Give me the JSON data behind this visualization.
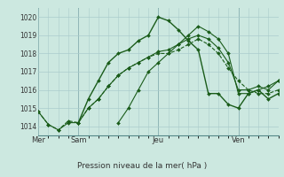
{
  "background_color": "#cce8e0",
  "grid_color": "#aacccc",
  "line_color": "#1a5c1a",
  "ylabel": "Pression niveau de la mer( hPa )",
  "ylim": [
    1013.5,
    1020.5
  ],
  "yticks": [
    1014,
    1015,
    1016,
    1017,
    1018,
    1019,
    1020
  ],
  "day_labels": [
    "Mer",
    "Sam",
    "Jeu",
    "Ven"
  ],
  "day_positions": [
    0,
    12,
    36,
    60
  ],
  "xlim": [
    0,
    72
  ],
  "series": [
    {
      "x": [
        0,
        3,
        6,
        9,
        12,
        15,
        18,
        21,
        24,
        27,
        30,
        33,
        36,
        39,
        42,
        45,
        48,
        51,
        54,
        57,
        60,
        63,
        66,
        69,
        72
      ],
      "y": [
        1014.8,
        1014.1,
        1013.8,
        1014.3,
        1014.2,
        1015.0,
        1015.5,
        1016.2,
        1016.8,
        1017.2,
        1017.5,
        1017.8,
        1018.0,
        1018.0,
        1018.2,
        1018.5,
        1018.8,
        1018.5,
        1018.0,
        1017.2,
        1016.5,
        1016.0,
        1015.8,
        1015.8,
        1016.0
      ],
      "linewidth": 0.8,
      "linestyle": "--"
    },
    {
      "x": [
        0,
        3,
        6,
        9,
        12,
        15,
        18,
        21,
        24,
        27,
        30,
        33,
        36,
        39,
        42,
        45,
        48,
        51,
        54,
        57,
        60,
        63,
        66,
        69,
        72
      ],
      "y": [
        1014.8,
        1014.1,
        1013.8,
        1014.2,
        1014.2,
        1015.0,
        1015.5,
        1016.2,
        1016.8,
        1017.2,
        1017.5,
        1017.8,
        1018.1,
        1018.2,
        1018.5,
        1018.8,
        1019.0,
        1018.8,
        1018.3,
        1017.5,
        1016.0,
        1016.0,
        1016.2,
        1016.0,
        1016.5
      ],
      "linewidth": 0.8,
      "linestyle": "-"
    },
    {
      "x": [
        12,
        15,
        18,
        21,
        24,
        27,
        30,
        33,
        36,
        39,
        42,
        45,
        48,
        51,
        54,
        57,
        60,
        63,
        66,
        69,
        72
      ],
      "y": [
        1014.2,
        1015.5,
        1016.5,
        1017.5,
        1018.0,
        1018.2,
        1018.7,
        1019.0,
        1020.0,
        1019.8,
        1019.3,
        1018.7,
        1018.2,
        1015.8,
        1015.8,
        1015.2,
        1015.0,
        1015.8,
        1016.0,
        1015.5,
        1015.8
      ],
      "linewidth": 1.0,
      "linestyle": "-"
    },
    {
      "x": [
        24,
        27,
        30,
        33,
        36,
        39,
        42,
        45,
        48,
        51,
        54,
        57,
        60,
        63,
        66,
        69,
        72
      ],
      "y": [
        1014.2,
        1015.0,
        1016.0,
        1017.0,
        1017.5,
        1018.0,
        1018.5,
        1019.0,
        1019.5,
        1019.2,
        1018.8,
        1018.0,
        1015.8,
        1015.8,
        1016.0,
        1016.2,
        1016.5
      ],
      "linewidth": 0.8,
      "linestyle": "-"
    }
  ]
}
